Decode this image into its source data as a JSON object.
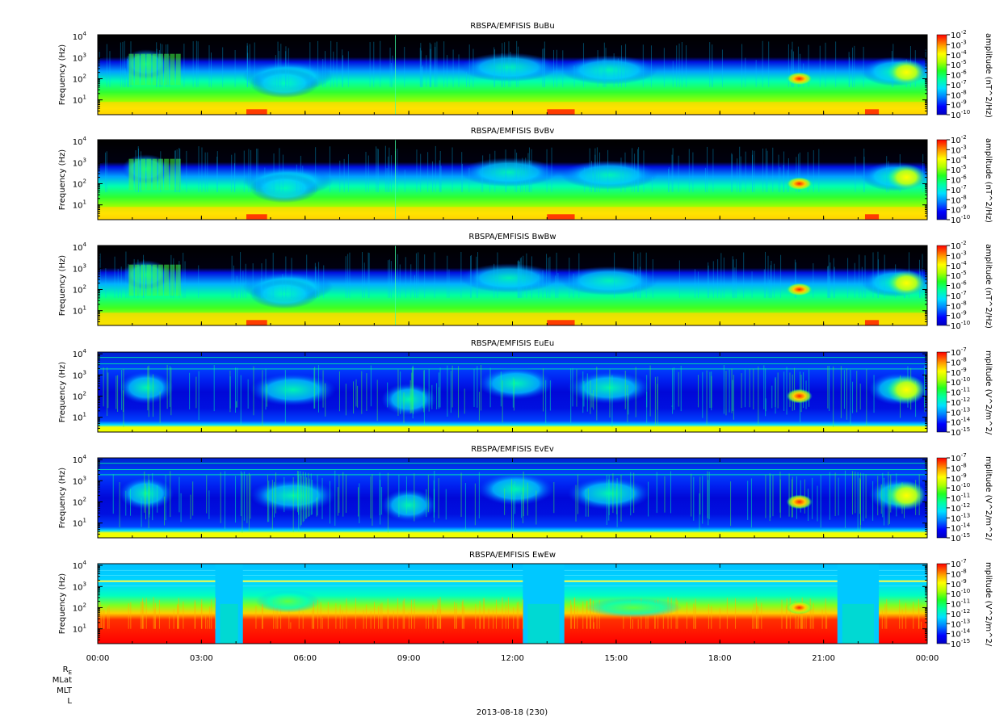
{
  "chart_data": [
    {
      "type": "heatmap",
      "title": "RBSPA/EMFISIS  BuBu",
      "ylabel": "Frequency (Hz)",
      "yscale": "log",
      "ylim": [
        2,
        12000
      ],
      "yticks": [
        {
          "base": "10",
          "exp": "1"
        },
        {
          "base": "10",
          "exp": "2"
        },
        {
          "base": "10",
          "exp": "3"
        },
        {
          "base": "10",
          "exp": "4"
        }
      ],
      "colorbar_label": "amplitude (nT^2/Hz)",
      "colorbar_scale": "log",
      "colorbar_ticks": [
        {
          "base": "10",
          "exp": "-2"
        },
        {
          "base": "10",
          "exp": "-3"
        },
        {
          "base": "10",
          "exp": "-4"
        },
        {
          "base": "10",
          "exp": "-5"
        },
        {
          "base": "10",
          "exp": "-6"
        },
        {
          "base": "10",
          "exp": "-7"
        },
        {
          "base": "10",
          "exp": "-8"
        },
        {
          "base": "10",
          "exp": "-9"
        },
        {
          "base": "10",
          "exp": "-10"
        }
      ],
      "kind": "B"
    },
    {
      "type": "heatmap",
      "title": "RBSPA/EMFISIS  BvBv",
      "ylabel": "Frequency (Hz)",
      "yscale": "log",
      "ylim": [
        2,
        12000
      ],
      "yticks": [
        {
          "base": "10",
          "exp": "1"
        },
        {
          "base": "10",
          "exp": "2"
        },
        {
          "base": "10",
          "exp": "3"
        },
        {
          "base": "10",
          "exp": "4"
        }
      ],
      "colorbar_label": "amplitude (nT^2/Hz)",
      "colorbar_scale": "log",
      "colorbar_ticks": [
        {
          "base": "10",
          "exp": "-2"
        },
        {
          "base": "10",
          "exp": "-3"
        },
        {
          "base": "10",
          "exp": "-4"
        },
        {
          "base": "10",
          "exp": "-5"
        },
        {
          "base": "10",
          "exp": "-6"
        },
        {
          "base": "10",
          "exp": "-7"
        },
        {
          "base": "10",
          "exp": "-8"
        },
        {
          "base": "10",
          "exp": "-9"
        },
        {
          "base": "10",
          "exp": "-10"
        }
      ],
      "kind": "B"
    },
    {
      "type": "heatmap",
      "title": "RBSPA/EMFISIS  BwBw",
      "ylabel": "Frequency (Hz)",
      "yscale": "log",
      "ylim": [
        2,
        12000
      ],
      "yticks": [
        {
          "base": "10",
          "exp": "1"
        },
        {
          "base": "10",
          "exp": "2"
        },
        {
          "base": "10",
          "exp": "3"
        },
        {
          "base": "10",
          "exp": "4"
        }
      ],
      "colorbar_label": "amplitude (nT^2/Hz)",
      "colorbar_scale": "log",
      "colorbar_ticks": [
        {
          "base": "10",
          "exp": "-2"
        },
        {
          "base": "10",
          "exp": "-3"
        },
        {
          "base": "10",
          "exp": "-4"
        },
        {
          "base": "10",
          "exp": "-5"
        },
        {
          "base": "10",
          "exp": "-6"
        },
        {
          "base": "10",
          "exp": "-7"
        },
        {
          "base": "10",
          "exp": "-8"
        },
        {
          "base": "10",
          "exp": "-9"
        },
        {
          "base": "10",
          "exp": "-10"
        }
      ],
      "kind": "Bw"
    },
    {
      "type": "heatmap",
      "title": "RBSPA/EMFISIS  EuEu",
      "ylabel": "Frequency (Hz)",
      "yscale": "log",
      "ylim": [
        2,
        12000
      ],
      "yticks": [
        {
          "base": "10",
          "exp": "1"
        },
        {
          "base": "10",
          "exp": "2"
        },
        {
          "base": "10",
          "exp": "3"
        },
        {
          "base": "10",
          "exp": "4"
        }
      ],
      "colorbar_label": "mplitude (V^2/m^2/",
      "colorbar_scale": "log",
      "colorbar_ticks": [
        {
          "base": "10",
          "exp": "-7"
        },
        {
          "base": "10",
          "exp": "-8"
        },
        {
          "base": "10",
          "exp": "-9"
        },
        {
          "base": "10",
          "exp": "-10"
        },
        {
          "base": "10",
          "exp": "-11"
        },
        {
          "base": "10",
          "exp": "-12"
        },
        {
          "base": "10",
          "exp": "-13"
        },
        {
          "base": "10",
          "exp": "-14"
        },
        {
          "base": "10",
          "exp": "-15"
        }
      ],
      "kind": "E"
    },
    {
      "type": "heatmap",
      "title": "RBSPA/EMFISIS  EvEv",
      "ylabel": "Frequency (Hz)",
      "yscale": "log",
      "ylim": [
        2,
        12000
      ],
      "yticks": [
        {
          "base": "10",
          "exp": "1"
        },
        {
          "base": "10",
          "exp": "2"
        },
        {
          "base": "10",
          "exp": "3"
        },
        {
          "base": "10",
          "exp": "4"
        }
      ],
      "colorbar_label": "mplitude (V^2/m^2/",
      "colorbar_scale": "log",
      "colorbar_ticks": [
        {
          "base": "10",
          "exp": "-7"
        },
        {
          "base": "10",
          "exp": "-8"
        },
        {
          "base": "10",
          "exp": "-9"
        },
        {
          "base": "10",
          "exp": "-10"
        },
        {
          "base": "10",
          "exp": "-11"
        },
        {
          "base": "10",
          "exp": "-12"
        },
        {
          "base": "10",
          "exp": "-13"
        },
        {
          "base": "10",
          "exp": "-14"
        },
        {
          "base": "10",
          "exp": "-15"
        }
      ],
      "kind": "E"
    },
    {
      "type": "heatmap",
      "title": "RBSPA/EMFISIS  EwEw",
      "ylabel": "Frequency (Hz)",
      "yscale": "log",
      "ylim": [
        2,
        12000
      ],
      "yticks": [
        {
          "base": "10",
          "exp": "1"
        },
        {
          "base": "10",
          "exp": "2"
        },
        {
          "base": "10",
          "exp": "3"
        },
        {
          "base": "10",
          "exp": "4"
        }
      ],
      "colorbar_label": "mplitude (V^2/m^2/",
      "colorbar_scale": "log",
      "colorbar_ticks": [
        {
          "base": "10",
          "exp": "-7"
        },
        {
          "base": "10",
          "exp": "-8"
        },
        {
          "base": "10",
          "exp": "-9"
        },
        {
          "base": "10",
          "exp": "-10"
        },
        {
          "base": "10",
          "exp": "-11"
        },
        {
          "base": "10",
          "exp": "-12"
        },
        {
          "base": "10",
          "exp": "-13"
        },
        {
          "base": "10",
          "exp": "-14"
        },
        {
          "base": "10",
          "exp": "-15"
        }
      ],
      "kind": "Ew"
    }
  ],
  "x_axis": {
    "ticks": [
      "00:00",
      "03:00",
      "06:00",
      "09:00",
      "12:00",
      "15:00",
      "18:00",
      "21:00",
      "00:00"
    ],
    "tick_hours": [
      0,
      3,
      6,
      9,
      12,
      15,
      18,
      21,
      24
    ],
    "minor_tick_interval_hours": 1,
    "xlim_hours": [
      0,
      24
    ],
    "row_labels": [
      {
        "text": "R",
        "sub": "E"
      },
      {
        "text": "MLat",
        "sub": ""
      },
      {
        "text": "MLT",
        "sub": ""
      },
      {
        "text": "L",
        "sub": ""
      }
    ],
    "date_label": "2013-08-18 (230)"
  },
  "colors": {
    "colormap": [
      "#0000c0",
      "#0000ff",
      "#0060ff",
      "#00c8ff",
      "#00ffc8",
      "#00ff60",
      "#40ff00",
      "#c8ff00",
      "#ffff00",
      "#ffb000",
      "#ff6000",
      "#ff0000"
    ],
    "background_low": "#000000"
  }
}
